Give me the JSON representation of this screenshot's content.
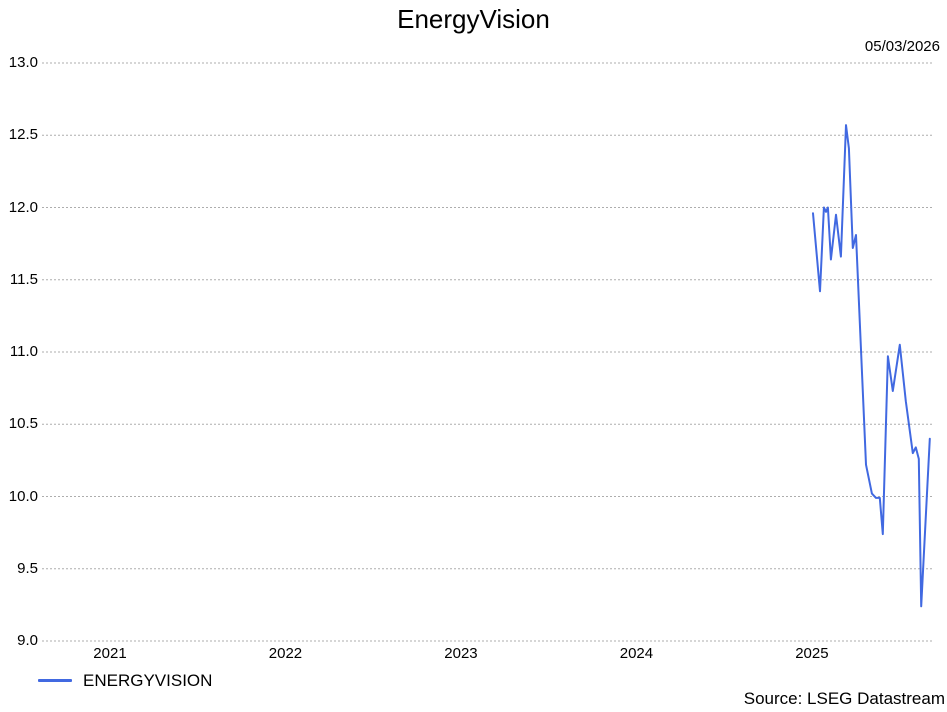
{
  "title": "EnergyVision",
  "date_label": "05/03/2026",
  "source": "Source: LSEG Datastream",
  "legend": {
    "label": "ENERGYVISION",
    "swatch_color": "#4169E1"
  },
  "colors": {
    "line": "#4169E1",
    "grid": "#ADADAD",
    "text": "#000000",
    "background": "#FFFFFF"
  },
  "chart_data": {
    "type": "line",
    "title": "EnergyVision",
    "xlabel": "",
    "ylabel": "",
    "grid": "horizontal-dashed",
    "legend_position": "bottom-left",
    "xlim": [
      2021.1125,
      2026.19
    ],
    "ylim": [
      9.0,
      13.0
    ],
    "x_ticks": [
      {
        "value": 2021.5,
        "label": "2021"
      },
      {
        "value": 2022.5,
        "label": "2022"
      },
      {
        "value": 2023.5,
        "label": "2023"
      },
      {
        "value": 2024.5,
        "label": "2024"
      },
      {
        "value": 2025.5,
        "label": "2025"
      }
    ],
    "y_ticks": [
      {
        "value": 13.0,
        "label": "13.0"
      },
      {
        "value": 12.5,
        "label": "12.5"
      },
      {
        "value": 12.0,
        "label": "12.0"
      },
      {
        "value": 11.5,
        "label": "11.5"
      },
      {
        "value": 11.0,
        "label": "11.0"
      },
      {
        "value": 10.5,
        "label": "10.5"
      },
      {
        "value": 10.0,
        "label": "10.0"
      },
      {
        "value": 9.5,
        "label": "9.5"
      },
      {
        "value": 9.0,
        "label": "9.0"
      }
    ],
    "series": [
      {
        "name": "ENERGYVISION",
        "color": "#4169E1",
        "points": [
          [
            2025.506,
            11.96
          ],
          [
            2025.546,
            11.42
          ],
          [
            2025.568,
            12.0
          ],
          [
            2025.58,
            11.97
          ],
          [
            2025.591,
            12.0
          ],
          [
            2025.608,
            11.64
          ],
          [
            2025.637,
            11.95
          ],
          [
            2025.665,
            11.66
          ],
          [
            2025.694,
            12.57
          ],
          [
            2025.711,
            12.41
          ],
          [
            2025.733,
            11.72
          ],
          [
            2025.751,
            11.81
          ],
          [
            2025.808,
            10.22
          ],
          [
            2025.842,
            10.02
          ],
          [
            2025.865,
            9.99
          ],
          [
            2025.887,
            9.99
          ],
          [
            2025.904,
            9.74
          ],
          [
            2025.933,
            10.97
          ],
          [
            2025.961,
            10.73
          ],
          [
            2026.001,
            11.05
          ],
          [
            2026.035,
            10.66
          ],
          [
            2026.075,
            10.3
          ],
          [
            2026.092,
            10.34
          ],
          [
            2026.109,
            10.26
          ],
          [
            2026.123,
            9.24
          ],
          [
            2026.172,
            10.4
          ]
        ]
      }
    ]
  }
}
